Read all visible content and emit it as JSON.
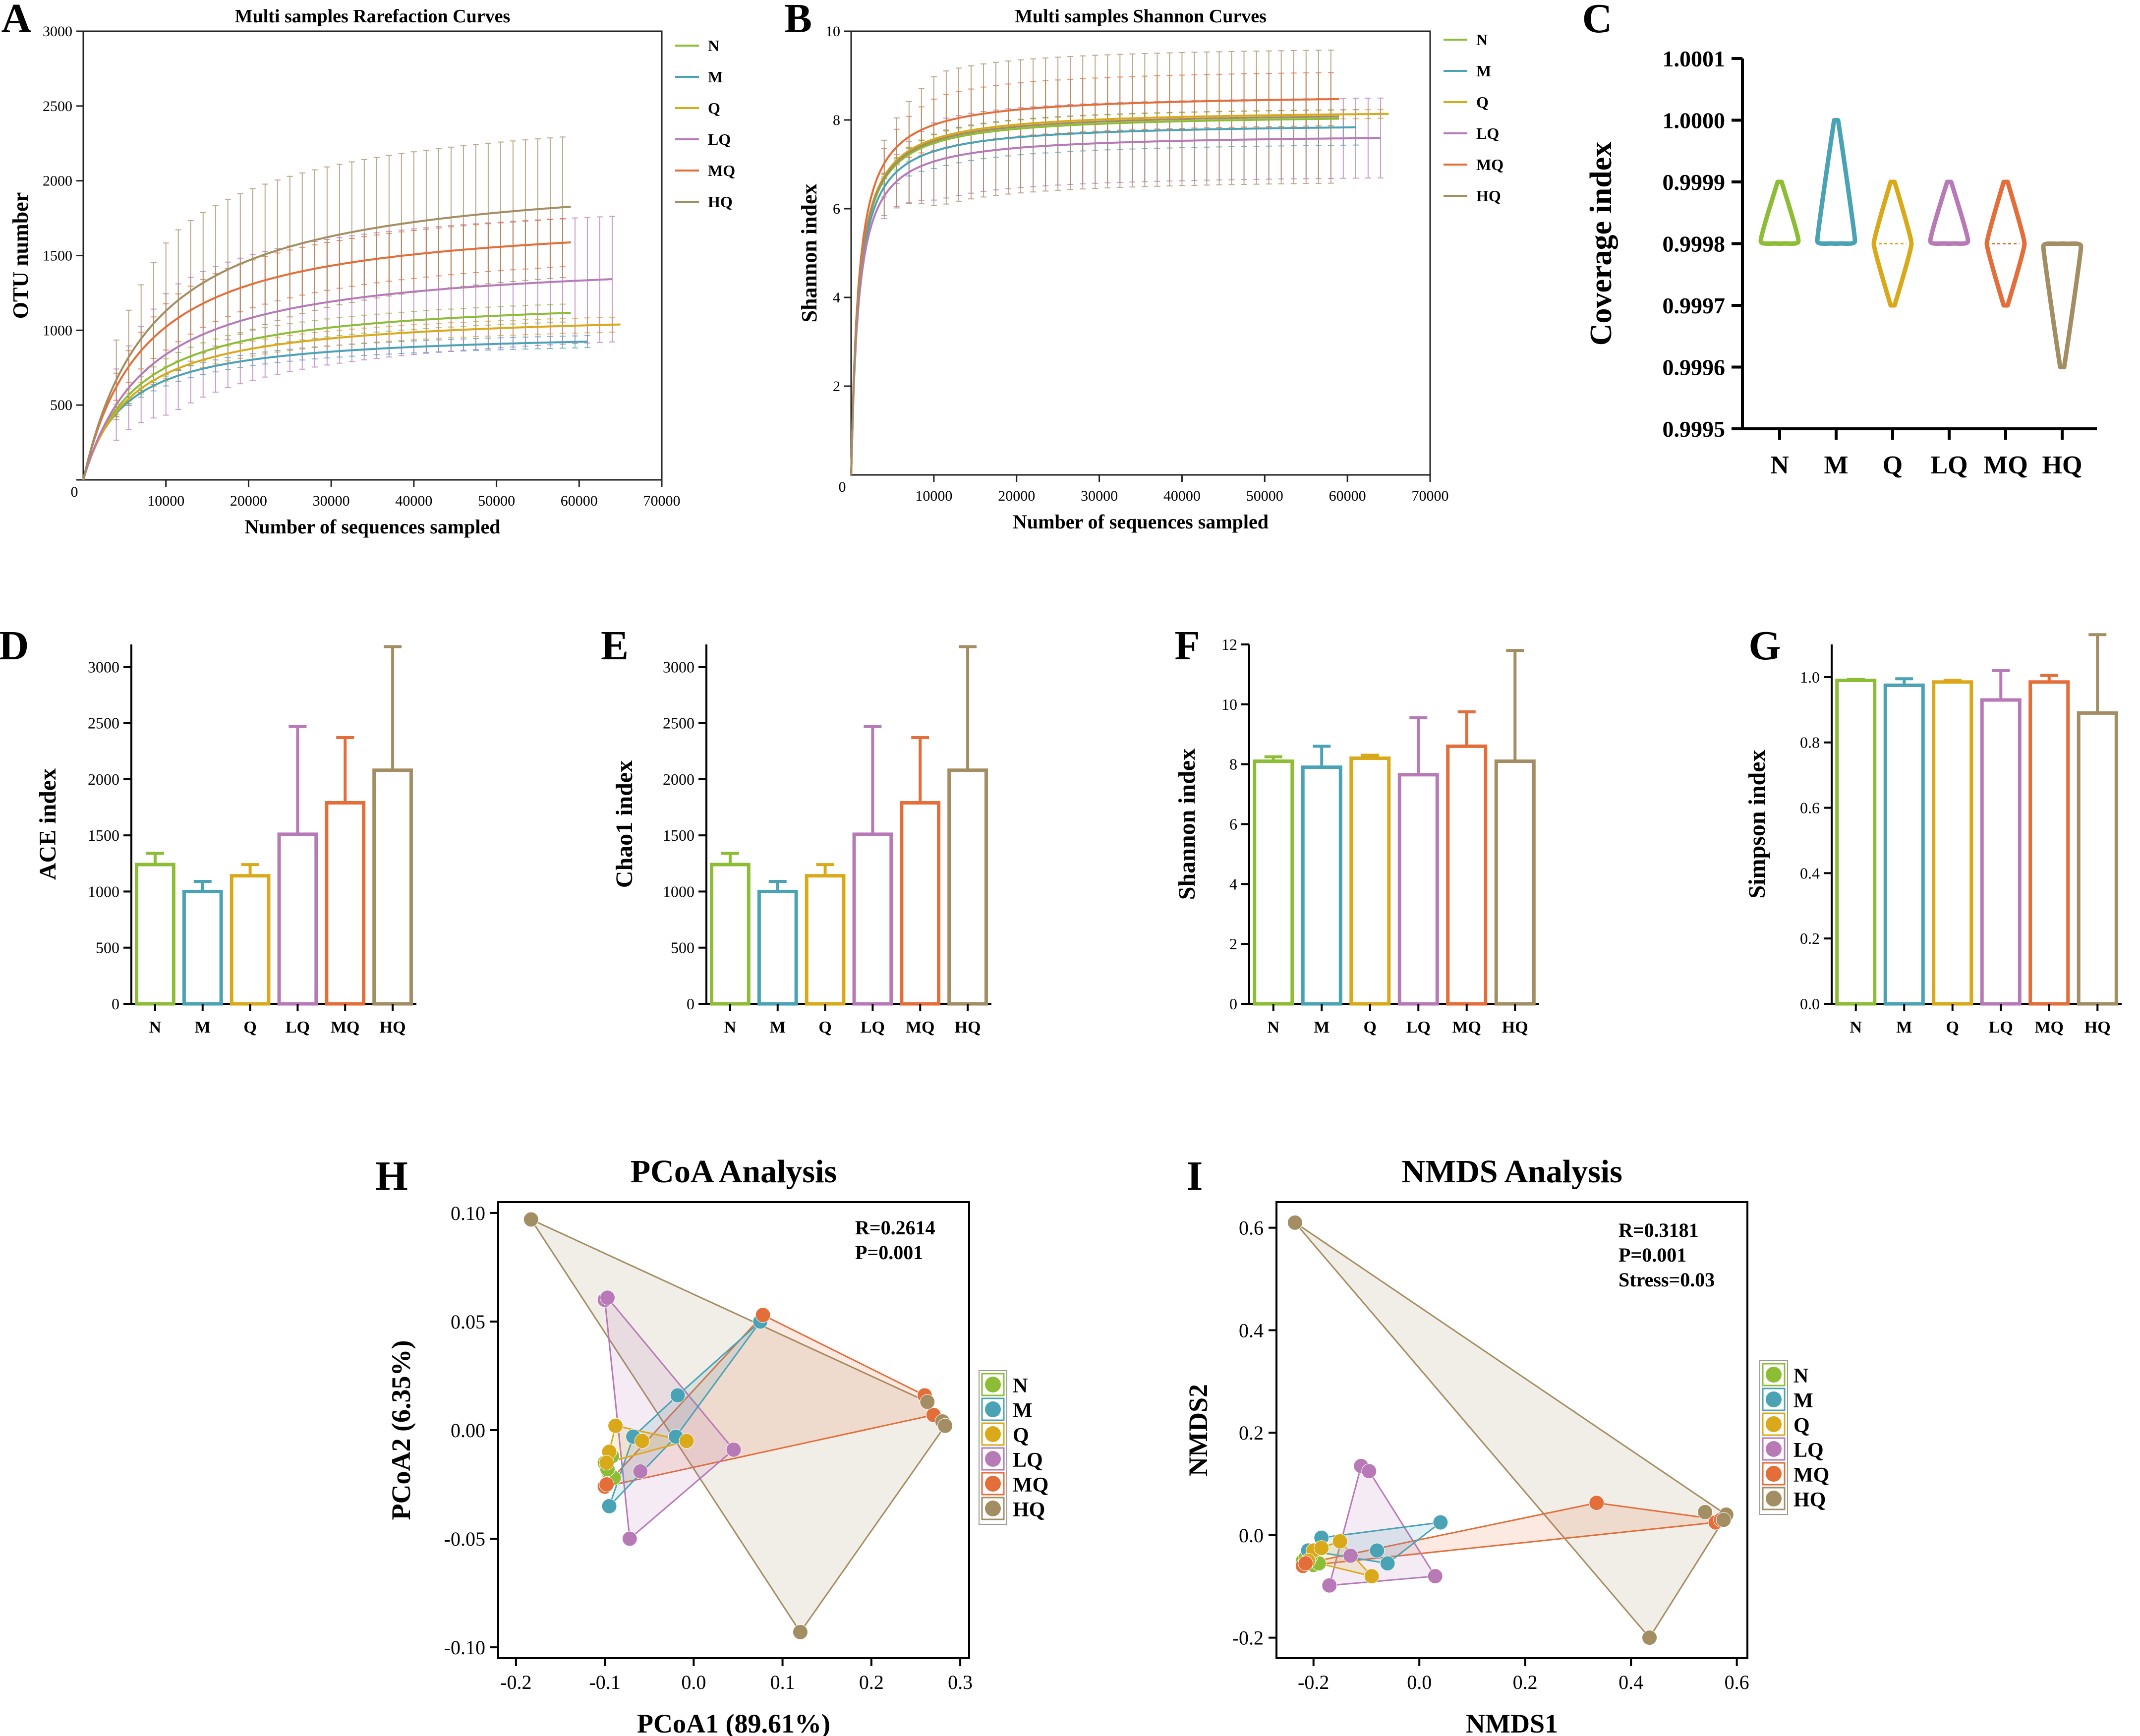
{
  "colors": {
    "N": "#8cbd35",
    "M": "#4aa3b4",
    "Q": "#d9a91a",
    "LQ": "#b77ab7",
    "MQ": "#e46e3a",
    "HQ": "#a38d63"
  },
  "chart_data": [
    {
      "panel": "A",
      "type": "line",
      "title": "Multi samples Rarefaction Curves",
      "xlabel": "Number of sequences sampled",
      "ylabel": "OTU number",
      "xlim": [
        0,
        70000
      ],
      "ylim": [
        0,
        3000
      ],
      "xticks": [
        10000,
        20000,
        30000,
        40000,
        50000,
        60000,
        70000
      ],
      "yticks": [
        0,
        500,
        1000,
        1500,
        2000,
        2500,
        3000
      ],
      "origin_label": "0",
      "series": [
        {
          "name": "N",
          "plateau": 1240,
          "k": 6500,
          "xmax": 59000,
          "err": 60
        },
        {
          "name": "M",
          "plateau": 1000,
          "k": 5000,
          "xmax": 61000,
          "err": 40
        },
        {
          "name": "Q",
          "plateau": 1135,
          "k": 6000,
          "xmax": 65000,
          "err": 50
        },
        {
          "name": "LQ",
          "plateau": 1510,
          "k": 8000,
          "xmax": 64000,
          "err": 420
        },
        {
          "name": "MQ",
          "plateau": 1790,
          "k": 7500,
          "xmax": 59000,
          "err": 160
        },
        {
          "name": "HQ",
          "plateau": 2090,
          "k": 8500,
          "xmax": 59000,
          "err": 470
        }
      ],
      "legend": [
        "N",
        "M",
        "Q",
        "LQ",
        "MQ",
        "HQ"
      ]
    },
    {
      "panel": "B",
      "type": "line",
      "title": "Multi samples Shannon Curves",
      "xlabel": "Number of sequences sampled",
      "ylabel": "Shannon index",
      "xlim": [
        0,
        70000
      ],
      "ylim": [
        0,
        10
      ],
      "xticks": [
        10000,
        20000,
        30000,
        40000,
        50000,
        60000,
        70000
      ],
      "yticks": [
        2,
        4,
        6,
        8,
        10
      ],
      "origin_label": "0",
      "series": [
        {
          "name": "N",
          "plateau": 8.15,
          "k": 900,
          "xmax": 59000,
          "err": 0.2
        },
        {
          "name": "M",
          "plateau": 7.95,
          "k": 900,
          "xmax": 61000,
          "err": 0.4
        },
        {
          "name": "Q",
          "plateau": 8.25,
          "k": 900,
          "xmax": 65000,
          "err": 0.1
        },
        {
          "name": "LQ",
          "plateau": 7.7,
          "k": 900,
          "xmax": 64000,
          "err": 0.9
        },
        {
          "name": "MQ",
          "plateau": 8.6,
          "k": 900,
          "xmax": 59000,
          "err": 0.6
        },
        {
          "name": "HQ",
          "plateau": 8.2,
          "k": 900,
          "xmax": 59000,
          "err": 1.5
        }
      ],
      "legend": [
        "N",
        "M",
        "Q",
        "LQ",
        "MQ",
        "HQ"
      ]
    },
    {
      "panel": "C",
      "type": "violin",
      "ylabel": "Coverage index",
      "ylim": [
        0.9995,
        1.0001
      ],
      "yticks": [
        {
          "v": 0.9995,
          "t": "0.9995"
        },
        {
          "v": 0.9996,
          "t": "0.9996"
        },
        {
          "v": 0.9997,
          "t": "0.9997"
        },
        {
          "v": 0.9998,
          "t": "0.9998"
        },
        {
          "v": 0.9999,
          "t": "0.9999"
        },
        {
          "v": 1.0,
          "t": "1.0000"
        },
        {
          "v": 1.0001,
          "t": "1.0001"
        }
      ],
      "categories": [
        "N",
        "M",
        "Q",
        "LQ",
        "MQ",
        "HQ"
      ],
      "groups": [
        {
          "name": "N",
          "min": 0.9998,
          "max": 0.9999,
          "median": 0.9998
        },
        {
          "name": "M",
          "min": 0.9998,
          "max": 1.0,
          "median": 0.9998
        },
        {
          "name": "Q",
          "min": 0.9997,
          "max": 0.9999,
          "median": 0.9998
        },
        {
          "name": "LQ",
          "min": 0.9998,
          "max": 0.9999,
          "median": 0.9998
        },
        {
          "name": "MQ",
          "min": 0.9997,
          "max": 0.9999,
          "median": 0.9998
        },
        {
          "name": "HQ",
          "min": 0.9996,
          "max": 0.9998,
          "median": 0.9998
        }
      ]
    },
    {
      "panel": "D",
      "type": "bar",
      "ylabel": "ACE index",
      "ylim": [
        0,
        3200
      ],
      "yticks": [
        {
          "v": 0,
          "t": "0"
        },
        {
          "v": 500,
          "t": "500"
        },
        {
          "v": 1000,
          "t": "1000"
        },
        {
          "v": 1500,
          "t": "1500"
        },
        {
          "v": 2000,
          "t": "2000"
        },
        {
          "v": 2500,
          "t": "2500"
        },
        {
          "v": 3000,
          "t": "3000"
        }
      ],
      "categories": [
        "N",
        "M",
        "Q",
        "LQ",
        "MQ",
        "HQ"
      ],
      "values": [
        1240,
        1000,
        1140,
        1510,
        1790,
        2080
      ],
      "errors": [
        100,
        90,
        100,
        960,
        580,
        1100
      ]
    },
    {
      "panel": "E",
      "type": "bar",
      "ylabel": "Chao1 index",
      "ylim": [
        0,
        3200
      ],
      "yticks": [
        {
          "v": 0,
          "t": "0"
        },
        {
          "v": 500,
          "t": "500"
        },
        {
          "v": 1000,
          "t": "1000"
        },
        {
          "v": 1500,
          "t": "1500"
        },
        {
          "v": 2000,
          "t": "2000"
        },
        {
          "v": 2500,
          "t": "2500"
        },
        {
          "v": 3000,
          "t": "3000"
        }
      ],
      "categories": [
        "N",
        "M",
        "Q",
        "LQ",
        "MQ",
        "HQ"
      ],
      "values": [
        1240,
        1000,
        1140,
        1510,
        1790,
        2080
      ],
      "errors": [
        100,
        90,
        100,
        960,
        580,
        1100
      ]
    },
    {
      "panel": "F",
      "type": "bar",
      "ylabel": "Shannon index",
      "ylim": [
        0,
        12
      ],
      "yticks": [
        {
          "v": 0,
          "t": "0"
        },
        {
          "v": 2,
          "t": "2"
        },
        {
          "v": 4,
          "t": "4"
        },
        {
          "v": 6,
          "t": "6"
        },
        {
          "v": 8,
          "t": "8"
        },
        {
          "v": 10,
          "t": "10"
        },
        {
          "v": 12,
          "t": "12"
        }
      ],
      "categories": [
        "N",
        "M",
        "Q",
        "LQ",
        "MQ",
        "HQ"
      ],
      "values": [
        8.1,
        7.9,
        8.2,
        7.65,
        8.6,
        8.1
      ],
      "errors": [
        0.15,
        0.7,
        0.1,
        1.9,
        1.15,
        3.7
      ]
    },
    {
      "panel": "G",
      "type": "bar",
      "ylabel": "Simpson index",
      "ylim": [
        0,
        1.1
      ],
      "yticks": [
        {
          "v": 0,
          "t": "0.0"
        },
        {
          "v": 0.2,
          "t": "0.2"
        },
        {
          "v": 0.4,
          "t": "0.4"
        },
        {
          "v": 0.6,
          "t": "0.6"
        },
        {
          "v": 0.8,
          "t": "0.8"
        },
        {
          "v": 1.0,
          "t": "1.0"
        }
      ],
      "categories": [
        "N",
        "M",
        "Q",
        "LQ",
        "MQ",
        "HQ"
      ],
      "values": [
        0.99,
        0.975,
        0.985,
        0.93,
        0.985,
        0.89
      ],
      "errors": [
        0.003,
        0.02,
        0.005,
        0.09,
        0.02,
        0.24
      ]
    },
    {
      "panel": "H",
      "type": "scatter",
      "title": "PCoA Analysis",
      "xlabel": "PCoA1 (89.61%)",
      "ylabel": "PCoA2 (6.35%)",
      "xlim": [
        -0.22,
        0.31
      ],
      "ylim": [
        -0.105,
        0.105
      ],
      "xticks": [
        {
          "v": -0.2,
          "t": "-0.2"
        },
        {
          "v": -0.1,
          "t": "-0.1"
        },
        {
          "v": 0,
          "t": "0.0"
        },
        {
          "v": 0.1,
          "t": "0.1"
        },
        {
          "v": 0.2,
          "t": "0.2"
        },
        {
          "v": 0.3,
          "t": "0.3"
        }
      ],
      "yticks": [
        {
          "v": 0.1,
          "t": "0.10"
        },
        {
          "v": 0.05,
          "t": "0.05"
        },
        {
          "v": 0,
          "t": "0.00"
        },
        {
          "v": -0.05,
          "t": "-0.05"
        },
        {
          "v": -0.1,
          "t": "-0.10"
        }
      ],
      "stats": [
        "R=0.2614",
        "P=0.001"
      ],
      "legend": [
        "N",
        "M",
        "Q",
        "LQ",
        "MQ",
        "HQ"
      ],
      "series": [
        {
          "name": "N",
          "points": [
            [
              -0.1,
              -0.015
            ],
            [
              -0.095,
              -0.02
            ],
            [
              -0.092,
              -0.012
            ],
            [
              -0.09,
              -0.022
            ],
            [
              -0.097,
              -0.018
            ]
          ]
        },
        {
          "name": "M",
          "points": [
            [
              0.075,
              0.05
            ],
            [
              -0.018,
              0.016
            ],
            [
              -0.068,
              -0.003
            ],
            [
              -0.02,
              -0.003
            ],
            [
              -0.095,
              -0.035
            ]
          ]
        },
        {
          "name": "Q",
          "points": [
            [
              -0.088,
              0.002
            ],
            [
              -0.095,
              -0.01
            ],
            [
              -0.098,
              -0.015
            ],
            [
              -0.058,
              -0.005
            ],
            [
              -0.008,
              -0.005
            ]
          ]
        },
        {
          "name": "LQ",
          "points": [
            [
              -0.1,
              0.06
            ],
            [
              -0.097,
              0.061
            ],
            [
              0.045,
              -0.009
            ],
            [
              -0.072,
              -0.05
            ],
            [
              -0.06,
              -0.019
            ]
          ]
        },
        {
          "name": "MQ",
          "points": [
            [
              0.078,
              0.053
            ],
            [
              0.26,
              0.016
            ],
            [
              0.27,
              0.007
            ],
            [
              -0.1,
              -0.026
            ],
            [
              -0.098,
              -0.025
            ]
          ]
        },
        {
          "name": "HQ",
          "points": [
            [
              -0.183,
              0.097
            ],
            [
              0.263,
              0.013
            ],
            [
              0.28,
              0.004
            ],
            [
              0.283,
              0.002
            ],
            [
              0.12,
              -0.093
            ]
          ]
        }
      ]
    },
    {
      "panel": "I",
      "type": "scatter",
      "title": "NMDS Analysis",
      "xlabel": "NMDS1",
      "ylabel": "NMDS2",
      "xlim": [
        -0.27,
        0.62
      ],
      "ylim": [
        -0.24,
        0.65
      ],
      "xticks": [
        {
          "v": -0.2,
          "t": "-0.2"
        },
        {
          "v": 0,
          "t": "0.0"
        },
        {
          "v": 0.2,
          "t": "0.2"
        },
        {
          "v": 0.4,
          "t": "0.4"
        },
        {
          "v": 0.6,
          "t": "0.6"
        }
      ],
      "yticks": [
        {
          "v": 0.6,
          "t": "0.6"
        },
        {
          "v": 0.4,
          "t": "0.4"
        },
        {
          "v": 0.2,
          "t": "0.2"
        },
        {
          "v": 0,
          "t": "0.0"
        },
        {
          "v": -0.2,
          "t": "-0.2"
        }
      ],
      "stats": [
        "R=0.3181",
        "P=0.001",
        "Stress=0.03"
      ],
      "legend": [
        "N",
        "M",
        "Q",
        "LQ",
        "MQ",
        "HQ"
      ],
      "series": [
        {
          "name": "N",
          "points": [
            [
              -0.2,
              -0.058
            ],
            [
              -0.22,
              -0.05
            ],
            [
              -0.215,
              -0.045
            ],
            [
              -0.19,
              -0.055
            ],
            [
              -0.205,
              -0.04
            ]
          ]
        },
        {
          "name": "M",
          "points": [
            [
              -0.185,
              -0.005
            ],
            [
              -0.08,
              -0.03
            ],
            [
              -0.06,
              -0.055
            ],
            [
              0.04,
              0.025
            ],
            [
              -0.21,
              -0.03
            ]
          ]
        },
        {
          "name": "Q",
          "points": [
            [
              -0.2,
              -0.03
            ],
            [
              -0.185,
              -0.025
            ],
            [
              -0.15,
              -0.012
            ],
            [
              -0.09,
              -0.08
            ],
            [
              -0.21,
              -0.05
            ]
          ]
        },
        {
          "name": "LQ",
          "points": [
            [
              -0.11,
              0.135
            ],
            [
              -0.095,
              0.125
            ],
            [
              -0.17,
              -0.098
            ],
            [
              -0.13,
              -0.04
            ],
            [
              0.03,
              -0.08
            ]
          ]
        },
        {
          "name": "MQ",
          "points": [
            [
              0.335,
              0.063
            ],
            [
              0.56,
              0.025
            ],
            [
              0.57,
              0.03
            ],
            [
              -0.22,
              -0.06
            ],
            [
              -0.215,
              -0.055
            ]
          ]
        },
        {
          "name": "HQ",
          "points": [
            [
              -0.235,
              0.61
            ],
            [
              0.54,
              0.045
            ],
            [
              0.58,
              0.04
            ],
            [
              0.575,
              0.03
            ],
            [
              0.435,
              -0.2
            ]
          ]
        }
      ]
    }
  ]
}
